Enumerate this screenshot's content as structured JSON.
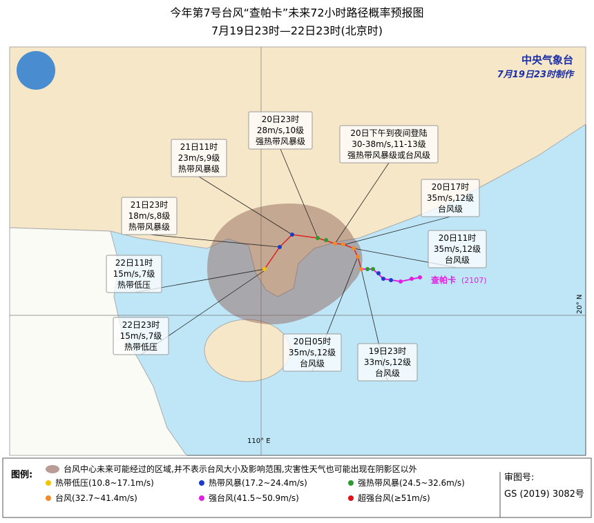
{
  "header": {
    "title": "今年第7号台风“查帕卡”未来72小时路径概率预报图",
    "subtitle": "7月19日23时—22日23时(北京时)"
  },
  "agency": {
    "name": "中央气象台",
    "issued": "7月19日23时制作"
  },
  "storm": {
    "name": "查帕卡",
    "code": "(2107)"
  },
  "axes": {
    "lon": "110° E",
    "lat": "20° N"
  },
  "callouts": [
    {
      "lines": [
        "20日23时",
        "28m/s,10级",
        "强热带风暴级"
      ]
    },
    {
      "lines": [
        "21日11时",
        "23m/s,9级",
        "热带风暴级"
      ]
    },
    {
      "lines": [
        "20日下午到夜间登陆",
        "30-38m/s,11-13级",
        "强热带风暴级或台风级"
      ]
    },
    {
      "lines": [
        "20日17时",
        "35m/s,12级",
        "台风级"
      ]
    },
    {
      "lines": [
        "21日23时",
        "18m/s,8级",
        "热带风暴级"
      ]
    },
    {
      "lines": [
        "20日11时",
        "35m/s,12级",
        "台风级"
      ]
    },
    {
      "lines": [
        "22日11时",
        "15m/s,7级",
        "热带低压"
      ]
    },
    {
      "lines": [
        "22日23时",
        "15m/s,7级",
        "热带低压"
      ]
    },
    {
      "lines": [
        "20日05时",
        "35m/s,12级",
        "台风级"
      ]
    },
    {
      "lines": [
        "19日23时",
        "33m/s,12级",
        "台风级"
      ]
    }
  ],
  "legend": {
    "title": "图例:",
    "area": "台风中心未来可能经过的区域,并不表示台风大小及影响范围,灾害性天气也可能出现在阴影区以外",
    "items": [
      {
        "label": "热带低压(10.8~17.1m/s)",
        "color": "#f5c400"
      },
      {
        "label": "热带风暴(17.2~24.4m/s)",
        "color": "#1a3cc8"
      },
      {
        "label": "强热带风暴(24.5~32.6m/s)",
        "color": "#2e9a2e"
      },
      {
        "label": "台风(32.7~41.4m/s)",
        "color": "#f08a2a"
      },
      {
        "label": "强台风(41.5~50.9m/s)",
        "color": "#e020e0"
      },
      {
        "label": "超强台风(≥51m/s)",
        "color": "#e0101a"
      }
    ]
  },
  "approval": {
    "label": "审图号:",
    "code": "GS (2019) 3082号"
  }
}
